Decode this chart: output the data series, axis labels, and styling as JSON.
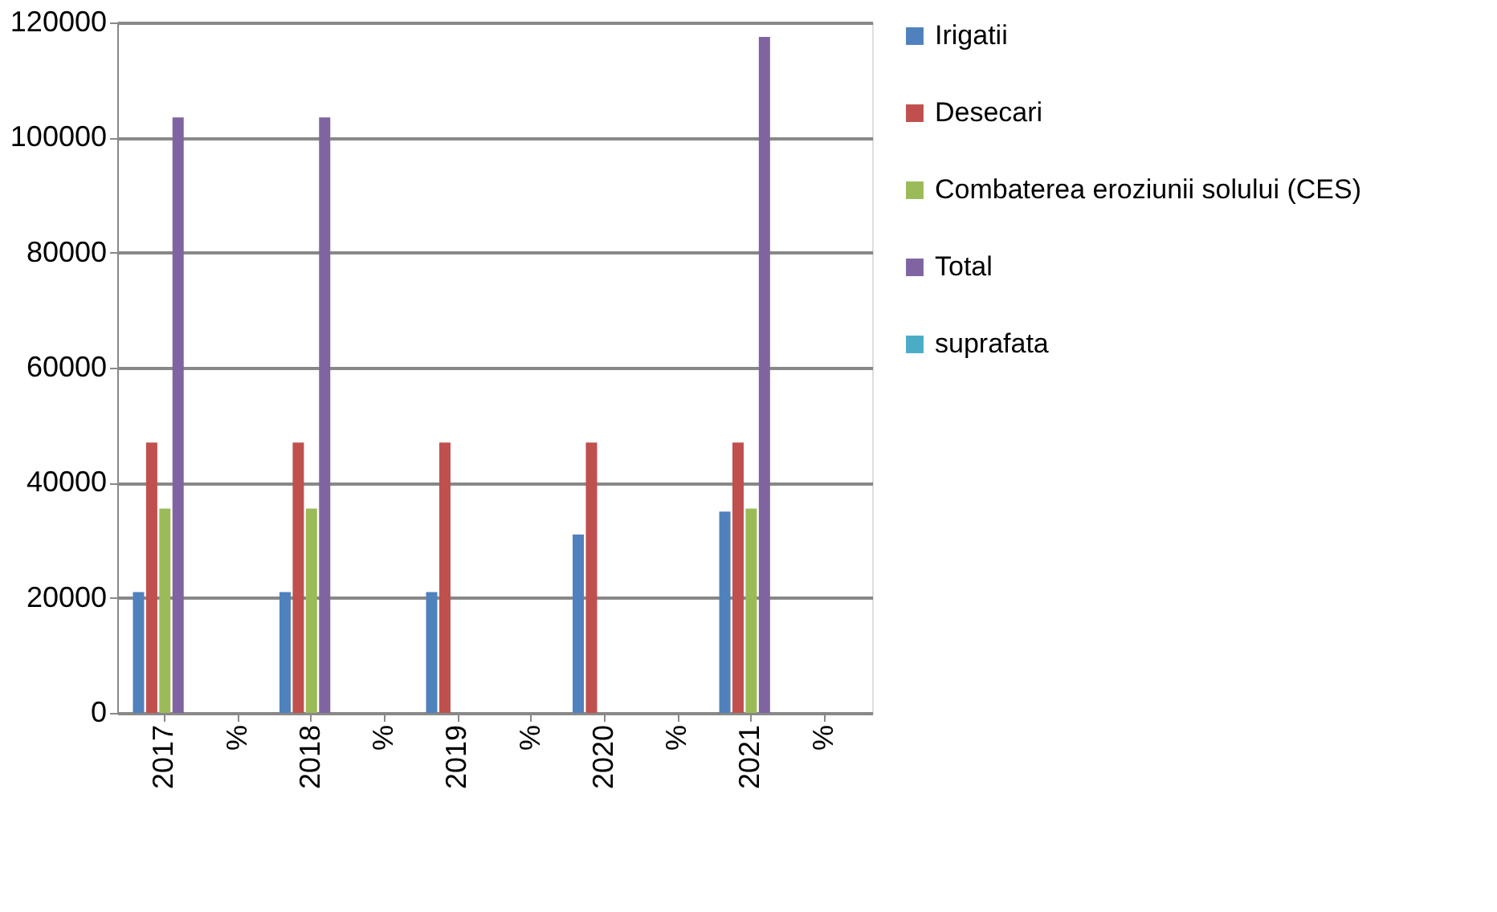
{
  "chart_data": {
    "type": "bar",
    "categories": [
      "2017",
      "%",
      "2018",
      "%",
      "2019",
      "%",
      "2020",
      "%",
      "2021",
      "%"
    ],
    "series": [
      {
        "name": "Irigatii",
        "color": "#4f81bd",
        "values": [
          21000,
          0,
          21000,
          0,
          21000,
          0,
          31000,
          0,
          35000,
          0
        ]
      },
      {
        "name": "Desecari",
        "color": "#c0504d",
        "values": [
          47000,
          0,
          47000,
          0,
          47000,
          0,
          47000,
          0,
          47000,
          0
        ]
      },
      {
        "name": "Combaterea eroziunii solului (CES)",
        "color": "#9bbb59",
        "values": [
          35500,
          0,
          35500,
          0,
          0,
          0,
          0,
          0,
          35500,
          0
        ]
      },
      {
        "name": "Total",
        "color": "#8064a2",
        "values": [
          103500,
          0,
          103500,
          0,
          0,
          0,
          0,
          0,
          117500,
          0
        ]
      },
      {
        "name": "suprafata",
        "color": "#4bacc6",
        "values": [
          0,
          0,
          0,
          0,
          0,
          0,
          0,
          0,
          0,
          0
        ]
      }
    ],
    "ylim": [
      0,
      120000
    ],
    "yticks": [
      0,
      20000,
      40000,
      60000,
      80000,
      100000,
      120000
    ],
    "grid": "y",
    "legend": "right"
  }
}
